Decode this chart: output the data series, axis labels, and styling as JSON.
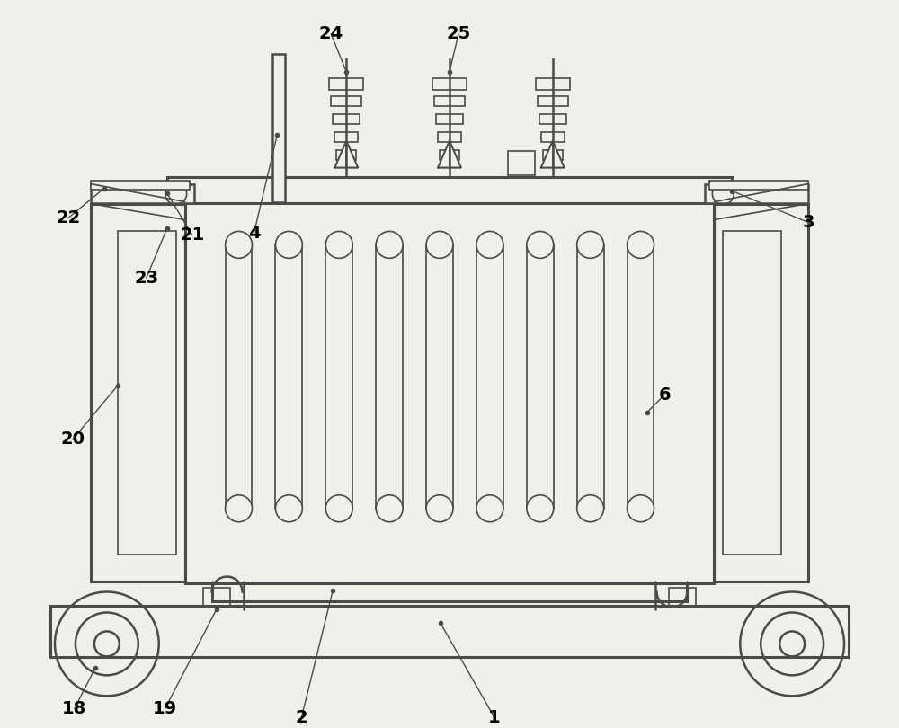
{
  "bg_color": "#f0f0eb",
  "line_color": "#4a4a4a",
  "lw_thin": 1.2,
  "lw_med": 1.8,
  "lw_thick": 2.2
}
